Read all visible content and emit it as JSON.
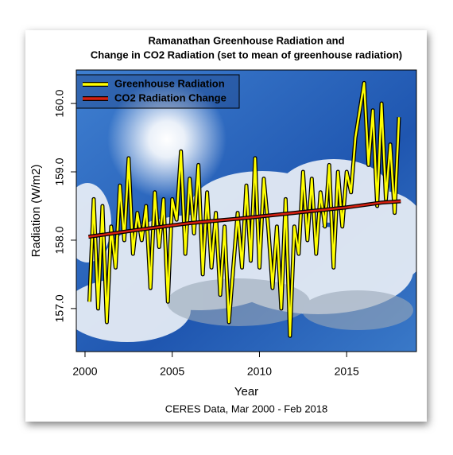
{
  "chart_data": {
    "type": "line",
    "title": [
      "Ramanathan Greenhouse Radiation and",
      "Change in CO2 Radiation (set to mean of greenhouse radiation)"
    ],
    "x_label": "Year",
    "y_label": "Radiation (W/m2)",
    "caption": "CERES Data, Mar 2000 - Feb 2018",
    "xlim": [
      1999.5,
      2019.0
    ],
    "ylim": [
      156.37,
      160.49
    ],
    "xticks": [
      2000,
      2005,
      2010,
      2015
    ],
    "yticks": [
      {
        "value": 157,
        "label": "157.0"
      },
      {
        "value": 158,
        "label": "158.0"
      },
      {
        "value": 159,
        "label": "159.0"
      },
      {
        "value": 160,
        "label": "160.0"
      }
    ],
    "legend": "top-left",
    "series": [
      {
        "name": "Greenhouse Radiation",
        "color": "#ffff00",
        "x": [
          2000.25,
          2000.5,
          2000.75,
          2001.0,
          2001.25,
          2001.5,
          2001.75,
          2002.0,
          2002.25,
          2002.5,
          2002.75,
          2003.0,
          2003.25,
          2003.5,
          2003.75,
          2004.0,
          2004.25,
          2004.5,
          2004.75,
          2005.0,
          2005.25,
          2005.5,
          2005.75,
          2006.0,
          2006.25,
          2006.5,
          2006.75,
          2007.0,
          2007.25,
          2007.5,
          2007.75,
          2008.0,
          2008.25,
          2008.5,
          2008.75,
          2009.0,
          2009.25,
          2009.5,
          2009.75,
          2010.0,
          2010.25,
          2010.5,
          2010.75,
          2011.0,
          2011.25,
          2011.5,
          2011.75,
          2012.0,
          2012.25,
          2012.5,
          2012.75,
          2013.0,
          2013.25,
          2013.5,
          2013.75,
          2014.0,
          2014.25,
          2014.5,
          2014.75,
          2015.0,
          2015.25,
          2015.5,
          2015.75,
          2016.0,
          2016.25,
          2016.5,
          2016.75,
          2017.0,
          2017.25,
          2017.5,
          2017.75,
          2018.0
        ],
        "values": [
          157.1,
          158.6,
          157.0,
          158.5,
          156.8,
          158.2,
          157.6,
          158.8,
          158.0,
          159.2,
          157.8,
          158.4,
          158.0,
          158.5,
          157.3,
          158.7,
          157.9,
          158.6,
          157.1,
          158.6,
          158.3,
          159.3,
          157.8,
          158.9,
          158.1,
          159.1,
          157.5,
          158.7,
          157.6,
          158.4,
          157.2,
          158.2,
          156.8,
          157.6,
          158.4,
          157.6,
          158.8,
          157.7,
          159.2,
          157.6,
          158.9,
          158.2,
          157.3,
          158.2,
          157.0,
          158.6,
          156.6,
          158.2,
          157.8,
          159.0,
          158.0,
          158.9,
          157.8,
          158.7,
          158.2,
          159.1,
          157.6,
          159.0,
          158.2,
          159.0,
          158.7,
          159.5,
          159.9,
          160.3,
          159.1,
          159.9,
          158.5,
          160.0,
          158.6,
          159.4,
          158.4,
          159.8
        ]
      },
      {
        "name": "CO2 Radiation Change",
        "color": "#d42010",
        "x": [
          2000.2,
          2003,
          2006,
          2009,
          2012,
          2015,
          2017,
          2018.1
        ],
        "values": [
          158.05,
          158.15,
          158.25,
          158.32,
          158.4,
          158.48,
          158.55,
          158.57
        ]
      }
    ]
  }
}
